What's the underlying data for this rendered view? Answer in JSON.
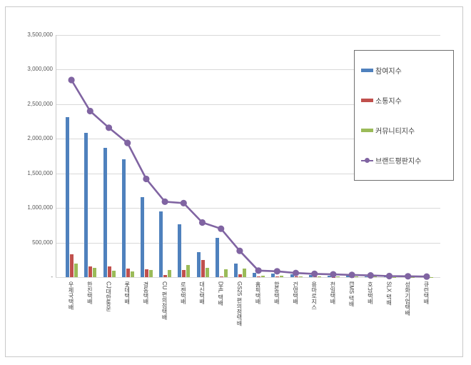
{
  "chart_data": {
    "type": "bar",
    "title": "",
    "xlabel": "",
    "ylabel": "",
    "grid": "horizontal",
    "legend_position": "top-right",
    "ylim": [
      0,
      3500000
    ],
    "ytick_labels": [
      "3,500,000",
      "3,000,000",
      "2,500,000",
      "2,000,000",
      "1,500,000",
      "1,000,000",
      "500,000",
      "-"
    ],
    "categories": [
      "우체국택배",
      "한진택배",
      "CJ대한통운",
      "롯데택배",
      "경동택배",
      "CU 편의점택배",
      "로젠택배",
      "대신택배",
      "DHL 택배",
      "GS25 편의점택배",
      "홈픽택배",
      "합동택배",
      "건영택배",
      "용마로지스",
      "천일택배",
      "EMS 택배",
      "호남택배",
      "SLX 택배",
      "성화기업택배",
      "큐런택배"
    ],
    "series": [
      {
        "name": "참여지수",
        "type": "bar",
        "color": "#4F81BD",
        "values": [
          2310000,
          2090000,
          1870000,
          1700000,
          1160000,
          950000,
          760000,
          360000,
          570000,
          195000,
          65000,
          50000,
          40000,
          30000,
          25000,
          20000,
          15000,
          12000,
          10000,
          8000
        ]
      },
      {
        "name": "소통지수",
        "type": "bar",
        "color": "#C0504D",
        "values": [
          330000,
          155000,
          157000,
          126000,
          113000,
          31000,
          102000,
          250000,
          13000,
          41000,
          15000,
          10000,
          8000,
          6000,
          5000,
          5000,
          4000,
          3000,
          3000,
          2000
        ]
      },
      {
        "name": "커뮤니티지수",
        "type": "bar",
        "color": "#9BBB59",
        "values": [
          198000,
          136000,
          95000,
          79000,
          102000,
          105000,
          172000,
          133000,
          110000,
          126000,
          20000,
          18000,
          12000,
          10000,
          8000,
          12000,
          8000,
          5000,
          4000,
          3000
        ]
      },
      {
        "name": "브랜드평판지수",
        "type": "line",
        "color": "#8064A2",
        "values": [
          2850000,
          2400000,
          2160000,
          1940000,
          1420000,
          1090000,
          1070000,
          790000,
          700000,
          380000,
          95000,
          85000,
          60000,
          47000,
          40000,
          32000,
          25000,
          16000,
          12000,
          8000
        ]
      }
    ]
  },
  "colors": {
    "gridline": "#D9D9D9",
    "axis_text": "#595959",
    "frame_border": "#C9C9C9",
    "legend_border": "#6F6F6F",
    "background": "#FFFFFF"
  }
}
